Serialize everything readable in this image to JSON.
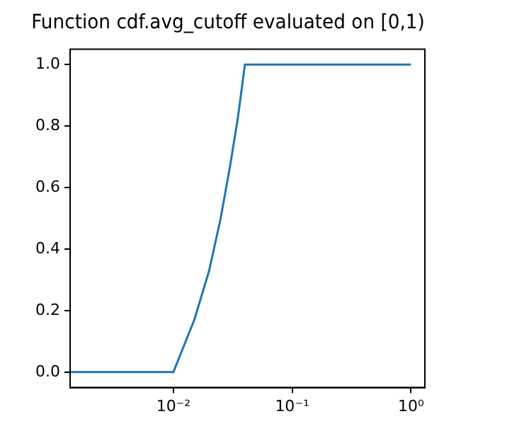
{
  "chart_data": {
    "type": "line",
    "title": "Function cdf.avg_cutoff evaluated on [0,1)",
    "x": [
      0.00135,
      0.005,
      0.01,
      0.015,
      0.02,
      0.025,
      0.03,
      0.035,
      0.04,
      0.1,
      0.5,
      1
    ],
    "series": [
      {
        "color": "#1f77b4",
        "values": [
          0,
          0,
          0,
          0.17,
          0.33,
          0.5,
          0.67,
          0.83,
          1,
          1,
          1,
          1
        ]
      }
    ],
    "log": "x",
    "xlim": [
      0.00135,
      1.31
    ],
    "xticks": [
      {
        "value": 0.01,
        "label": "10⁻²"
      },
      {
        "value": 0.1,
        "label": "10⁻¹"
      },
      {
        "value": 1,
        "label": "10⁰"
      }
    ],
    "ylim": [
      -0.05,
      1.05
    ],
    "yticks": [
      {
        "value": 0,
        "label": "0.0"
      },
      {
        "value": 0.2,
        "label": "0.2"
      },
      {
        "value": 0.4,
        "label": "0.4"
      },
      {
        "value": 0.6,
        "label": "0.6"
      },
      {
        "value": 0.8,
        "label": "0.8"
      },
      {
        "value": 1,
        "label": "1.0"
      }
    ],
    "grid": false,
    "legend": false,
    "marker": "none",
    "line_style": "solid"
  }
}
